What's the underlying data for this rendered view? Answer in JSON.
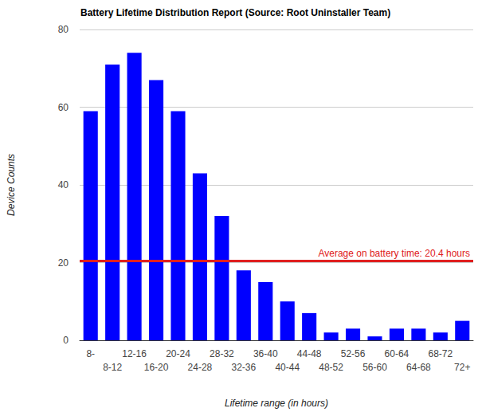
{
  "chart_data": {
    "type": "bar",
    "title": "Battery Lifetime Distribution Report (Source: Root Uninstaller Team)",
    "x_label": "Lifetime range (in hours)",
    "y_label": "Device Counts",
    "categories": [
      "8-",
      "8-12",
      "12-16",
      "16-20",
      "20-24",
      "24-28",
      "28-32",
      "32-36",
      "36-40",
      "40-44",
      "44-48",
      "48-52",
      "52-56",
      "56-60",
      "60-64",
      "64-68",
      "68-72",
      "72+"
    ],
    "values": [
      59,
      71,
      74,
      67,
      59,
      43,
      32,
      18,
      15,
      10,
      7,
      2,
      3,
      1,
      3,
      3,
      2,
      5
    ],
    "color": "#0000ff",
    "ylim": [
      0,
      80
    ],
    "yticks": [
      0,
      20,
      40,
      60,
      80
    ],
    "grid": true,
    "annotations": [
      {
        "text": "Average on battery time: 20.4 hours",
        "y": 20.4
      }
    ]
  }
}
